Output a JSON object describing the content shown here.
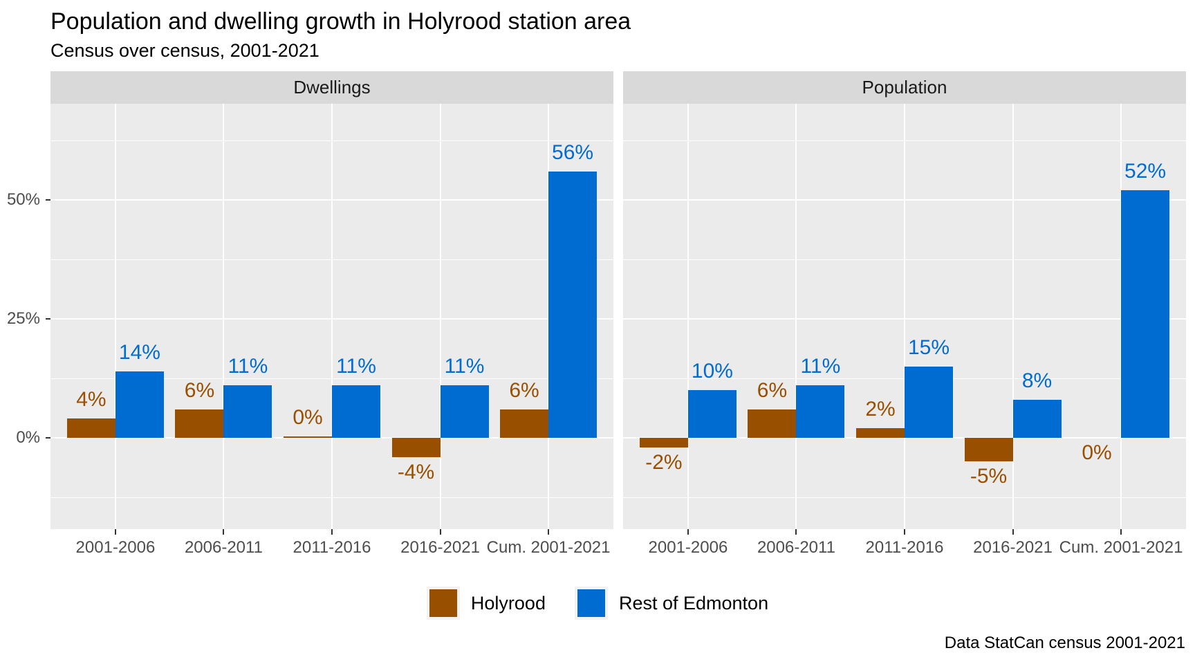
{
  "title": "Population and dwelling growth in Holyrood station area",
  "subtitle": "Census over census, 2001-2021",
  "caption": "Data StatCan census 2001-2021",
  "legend": {
    "items": [
      {
        "label": "Holyrood",
        "color": "#994F00"
      },
      {
        "label": "Rest of Edmonton",
        "color": "#006CD1"
      }
    ]
  },
  "chart_data": {
    "type": "bar",
    "grouping": "dodged",
    "title": "Population and dwelling growth in Holyrood station area",
    "subtitle": "Census over census, 2001-2021",
    "caption": "Data StatCan census 2001-2021",
    "legend_position": "bottom",
    "grid": true,
    "categories": [
      "2001-2006",
      "2006-2011",
      "2011-2016",
      "2016-2021",
      "Cum. 2001-2021"
    ],
    "y_axis": {
      "tick_labels": [
        "0%",
        "25%",
        "50%"
      ],
      "tick_values": [
        0,
        25,
        50
      ],
      "minor_tick_values": [
        -12.5,
        12.5,
        37.5,
        62.5
      ],
      "range": [
        -19,
        70
      ],
      "unit": "percent"
    },
    "facets": [
      {
        "label": "Dwellings",
        "series": [
          {
            "name": "Holyrood",
            "color": "#994F00",
            "values": [
              4,
              6,
              0,
              -4,
              6
            ],
            "labels": [
              "4%",
              "6%",
              "0%",
              "-4%",
              "6%"
            ],
            "label_below": [
              false,
              false,
              false,
              true,
              false
            ]
          },
          {
            "name": "Rest of Edmonton",
            "color": "#006CD1",
            "values": [
              14,
              11,
              11,
              11,
              56
            ],
            "labels": [
              "14%",
              "11%",
              "11%",
              "11%",
              "56%"
            ],
            "label_below": [
              false,
              false,
              false,
              false,
              false
            ]
          }
        ]
      },
      {
        "label": "Population",
        "series": [
          {
            "name": "Holyrood",
            "color": "#994F00",
            "values": [
              -2,
              6,
              2,
              -5,
              0
            ],
            "labels": [
              "-2%",
              "6%",
              "2%",
              "-5%",
              "0%"
            ],
            "label_below": [
              true,
              false,
              false,
              true,
              true
            ]
          },
          {
            "name": "Rest of Edmonton",
            "color": "#006CD1",
            "values": [
              10,
              11,
              15,
              8,
              52
            ],
            "labels": [
              "10%",
              "11%",
              "15%",
              "8%",
              "52%"
            ],
            "label_below": [
              false,
              false,
              false,
              false,
              false
            ]
          }
        ]
      }
    ]
  }
}
